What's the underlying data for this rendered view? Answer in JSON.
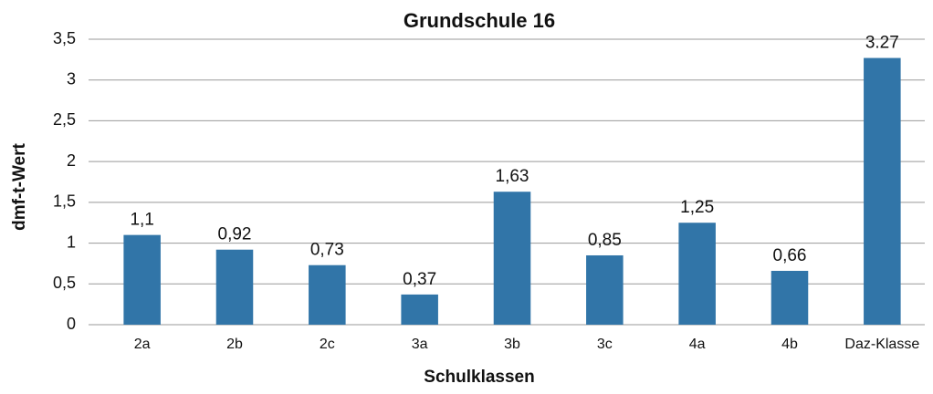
{
  "chart_data": {
    "type": "bar",
    "title": "Grundschule 16",
    "x_label": "Schulklassen",
    "y_label": "dmf-t-Wert",
    "categories": [
      "2a",
      "2b",
      "2c",
      "3a",
      "3b",
      "3c",
      "4a",
      "4b",
      "Daz-Klasse"
    ],
    "values": [
      1.1,
      0.92,
      0.73,
      0.37,
      1.63,
      0.85,
      1.25,
      0.66,
      3.27
    ],
    "value_labels": [
      "1,1",
      "0,92",
      "0,73",
      "0,37",
      "1,63",
      "0,85",
      "1,25",
      "0,66",
      "3.27"
    ],
    "color": "#3175a8",
    "ylim": [
      0,
      3.5
    ],
    "yticks": [
      0,
      {
        "value": 0.5,
        "label": "0,5"
      },
      1,
      {
        "value": 1.5,
        "label": "1,5"
      },
      2,
      {
        "value": 2.5,
        "label": "2,5"
      },
      3,
      {
        "value": 3.5,
        "label": "3,5"
      }
    ],
    "grid": true
  }
}
